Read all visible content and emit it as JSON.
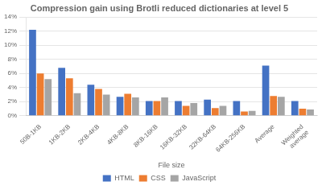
{
  "chart_data": {
    "type": "bar",
    "title": "Compression gain using Brotli reduced dictionaries at level 5",
    "x_label": "File size",
    "categories": [
      "50B-1KB",
      "1KB-2KB",
      "2KB-4KB",
      "4KB-8KB",
      "8KB-16KB",
      "16KB-32KB",
      "32KB-64KB",
      "64KB-256KB",
      "Average",
      "Weighted\naverage"
    ],
    "series": [
      {
        "name": "HTML",
        "color": "#4472C4",
        "values": [
          0.122,
          0.068,
          0.044,
          0.027,
          0.021,
          0.021,
          0.023,
          0.021,
          0.071,
          0.021
        ]
      },
      {
        "name": "CSS",
        "color": "#ED7D31",
        "values": [
          0.06,
          0.053,
          0.038,
          0.031,
          0.021,
          0.014,
          0.011,
          0.006,
          0.028,
          0.01
        ]
      },
      {
        "name": "JavaScript",
        "color": "#A5A5A5",
        "values": [
          0.052,
          0.032,
          0.03,
          0.026,
          0.026,
          0.018,
          0.014,
          0.007,
          0.027,
          0.009
        ]
      }
    ],
    "ylim": [
      0,
      0.14
    ],
    "yticks": [
      {
        "value": 0.0,
        "label": "0%"
      },
      {
        "value": 0.02,
        "label": "2%"
      },
      {
        "value": 0.04,
        "label": "4%"
      },
      {
        "value": 0.06,
        "label": "6%"
      },
      {
        "value": 0.08,
        "label": "8%"
      },
      {
        "value": 0.1,
        "label": "10%"
      },
      {
        "value": 0.12,
        "label": "12%"
      },
      {
        "value": 0.14,
        "label": "14%"
      }
    ],
    "grid": "y",
    "legend": "bottom"
  }
}
